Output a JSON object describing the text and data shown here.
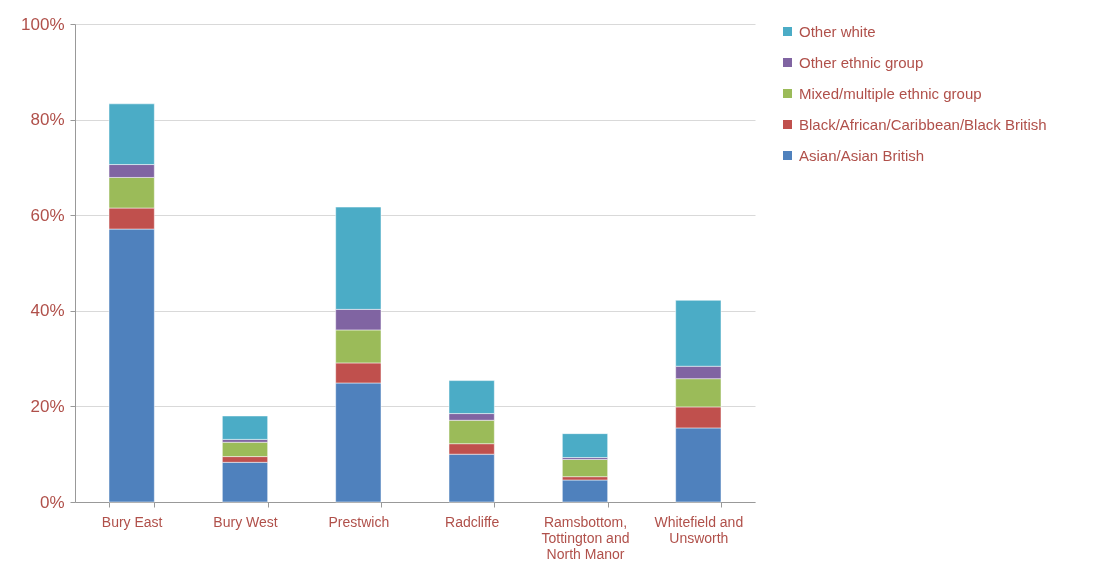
{
  "chart_data": {
    "type": "bar",
    "stacked": true,
    "categories": [
      "Bury East",
      "Bury West",
      "Prestwich",
      "Radcliffe",
      "Ramsbottom, Tottington and North Manor",
      "Whitefield and Unsworth"
    ],
    "series": [
      {
        "name": "Asian/Asian British",
        "color": "#4f81bd",
        "values": [
          57.1,
          8.3,
          24.9,
          10.0,
          4.6,
          15.5
        ]
      },
      {
        "name": "Black/African/Caribbean/Black British",
        "color": "#c0504d",
        "values": [
          4.4,
          1.2,
          4.2,
          2.2,
          0.7,
          4.4
        ]
      },
      {
        "name": "Mixed/multiple ethnic group",
        "color": "#9bbb59",
        "values": [
          6.4,
          3.0,
          6.9,
          4.9,
          3.6,
          5.9
        ]
      },
      {
        "name": "Other ethnic group",
        "color": "#8064a2",
        "values": [
          2.7,
          0.6,
          4.3,
          1.4,
          0.4,
          2.6
        ]
      },
      {
        "name": "Other white",
        "color": "#4bacc6",
        "values": [
          12.7,
          4.9,
          21.4,
          6.9,
          5.0,
          13.8
        ]
      }
    ],
    "ylim": [
      0,
      100
    ],
    "yticks": [
      {
        "value": 0,
        "label": "0%"
      },
      {
        "value": 20,
        "label": "20%"
      },
      {
        "value": 40,
        "label": "40%"
      },
      {
        "value": 60,
        "label": "60%"
      },
      {
        "value": 80,
        "label": "80%"
      },
      {
        "value": 100,
        "label": "100%"
      }
    ],
    "grid": "y",
    "legend": "right"
  }
}
